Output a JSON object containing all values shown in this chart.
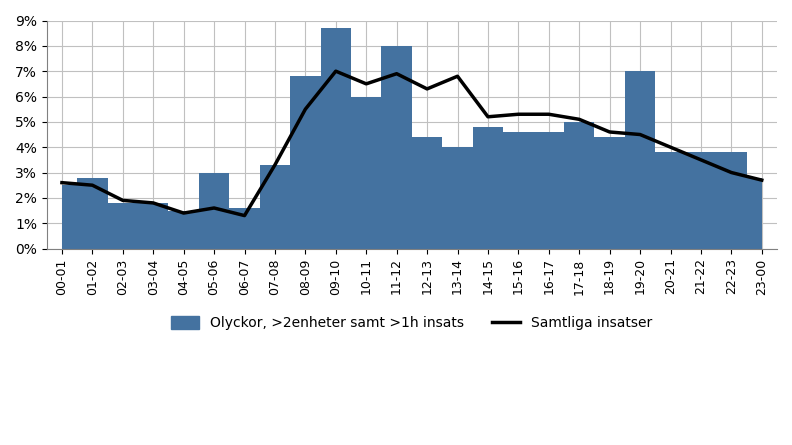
{
  "categories": [
    "00-01",
    "01-02",
    "02-03",
    "03-04",
    "04-05",
    "05-06",
    "06-07",
    "07-08",
    "08-09",
    "09-10",
    "10-11",
    "11-12",
    "12-13",
    "13-14",
    "14-15",
    "15-16",
    "16-17",
    "17-18",
    "18-19",
    "19-20",
    "20-21",
    "21-22",
    "22-23",
    "23-00"
  ],
  "area_values": [
    0.025,
    0.028,
    0.018,
    0.018,
    0.015,
    0.03,
    0.016,
    0.033,
    0.068,
    0.087,
    0.06,
    0.08,
    0.044,
    0.04,
    0.048,
    0.046,
    0.046,
    0.05,
    0.044,
    0.07,
    0.038,
    0.038,
    0.038,
    0.028
  ],
  "line_values": [
    0.026,
    0.025,
    0.019,
    0.018,
    0.014,
    0.016,
    0.013,
    0.033,
    0.055,
    0.07,
    0.065,
    0.069,
    0.063,
    0.068,
    0.052,
    0.053,
    0.053,
    0.051,
    0.046,
    0.045,
    0.04,
    0.035,
    0.03,
    0.027
  ],
  "area_color": "#4472a0",
  "area_alpha": 1.0,
  "line_color": "#000000",
  "line_width": 2.5,
  "ylim": [
    0,
    0.09
  ],
  "yticks": [
    0,
    0.01,
    0.02,
    0.03,
    0.04,
    0.05,
    0.06,
    0.07,
    0.08,
    0.09
  ],
  "ytick_labels": [
    "0%",
    "1%",
    "2%",
    "3%",
    "4%",
    "5%",
    "6%",
    "7%",
    "8%",
    "9%"
  ],
  "legend_bar_label": "Olyckor, >2enheter samt >1h insats",
  "legend_line_label": "Samtliga insatser",
  "grid_color": "#c0c0c0",
  "background_color": "#ffffff",
  "figsize": [
    7.92,
    4.45
  ],
  "dpi": 100
}
